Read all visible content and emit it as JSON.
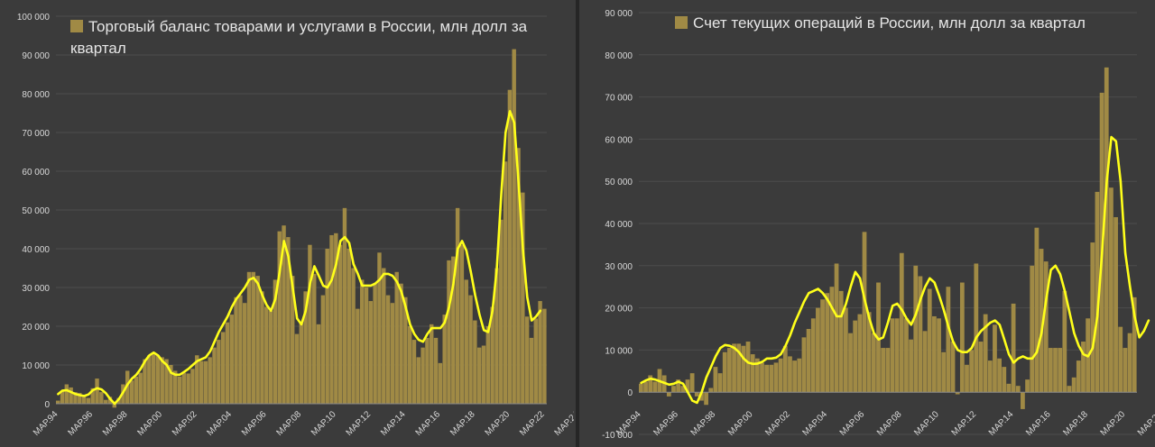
{
  "chart_data": [
    {
      "type": "bar",
      "legend": "Торговый баланс товарами и услугами в России, млн долл за квартал",
      "bar_color": "#a08a45",
      "line_color": "#ffff1a",
      "ylim": [
        0,
        100000
      ],
      "yticks": [
        "0",
        "10 000",
        "20 000",
        "30 000",
        "40 000",
        "50 000",
        "60 000",
        "70 000",
        "80 000",
        "90 000",
        "100 000"
      ],
      "xticks": [
        "МАР.94",
        "МАР.96",
        "МАР.98",
        "МАР.00",
        "МАР.02",
        "МАР.04",
        "МАР.06",
        "МАР.08",
        "МАР.10",
        "МАР.12",
        "МАР.14",
        "МАР.16",
        "МАР.18",
        "МАР.20",
        "МАР.22",
        "МАР.24"
      ],
      "series": [
        {
          "name": "Торговый баланс",
          "kind": "bar",
          "values": [
            800,
            3200,
            5000,
            4200,
            3000,
            2800,
            2000,
            1500,
            4000,
            6500,
            3000,
            1000,
            1800,
            -1000,
            1500,
            5000,
            8500,
            6000,
            7000,
            8000,
            11500,
            12500,
            13000,
            12500,
            12000,
            11500,
            10000,
            8500,
            7000,
            8000,
            7800,
            9000,
            12500,
            11000,
            11000,
            12000,
            14500,
            16500,
            18500,
            21000,
            23000,
            27500,
            28000,
            26000,
            34000,
            34000,
            33000,
            29000,
            25000,
            24000,
            32000,
            44500,
            46000,
            43000,
            33000,
            18000,
            21000,
            29000,
            41000,
            33500,
            20500,
            28000,
            40000,
            43500,
            44000,
            41000,
            50500,
            40000,
            35000,
            24500,
            32000,
            30000,
            26500,
            31000,
            39000,
            35000,
            28000,
            26000,
            34000,
            31000,
            27500,
            20000,
            16500,
            12000,
            14500,
            17000,
            20500,
            17000,
            10500,
            23000,
            37000,
            38000,
            50500,
            41000,
            32000,
            28000,
            21500,
            14500,
            15000,
            20000,
            25000,
            35000,
            47500,
            62500,
            81000,
            91500,
            66000,
            54500,
            22500,
            17000,
            22000,
            26500,
            24500
          ]
        },
        {
          "name": "Скользящее среднее",
          "kind": "line",
          "values": [
            2500,
            3400,
            3500,
            3000,
            2500,
            2200,
            2000,
            2400,
            3500,
            4000,
            3700,
            2700,
            1200,
            0,
            1200,
            3000,
            5000,
            6500,
            7500,
            9000,
            11000,
            12500,
            13200,
            12500,
            11000,
            10000,
            8000,
            7500,
            7500,
            8200,
            9000,
            10000,
            11000,
            11500,
            12000,
            13500,
            16000,
            18500,
            20500,
            22500,
            25000,
            27000,
            28500,
            30000,
            32000,
            32500,
            31000,
            28000,
            25500,
            24000,
            27000,
            34000,
            42000,
            38000,
            30000,
            22000,
            20500,
            24000,
            31000,
            35500,
            33000,
            30500,
            30000,
            32000,
            36000,
            42000,
            43000,
            41500,
            36000,
            33500,
            30500,
            30500,
            30500,
            31000,
            32000,
            33500,
            33500,
            33000,
            31500,
            29000,
            25000,
            20500,
            18000,
            16500,
            16000,
            18000,
            19500,
            19500,
            19500,
            21000,
            25000,
            31000,
            40000,
            42000,
            39500,
            34000,
            28000,
            23000,
            19000,
            18500,
            24000,
            35000,
            54000,
            70000,
            75500,
            72500,
            57000,
            40000,
            27500,
            21500,
            22500,
            24000
          ]
        }
      ]
    },
    {
      "type": "bar",
      "legend": "Счет текущих операций в России, млн долл за квартал",
      "bar_color": "#a08a45",
      "line_color": "#ffff1a",
      "ylim": [
        -10000,
        90000
      ],
      "yticks": [
        "-10 000",
        "0",
        "10 000",
        "20 000",
        "30 000",
        "40 000",
        "50 000",
        "60 000",
        "70 000",
        "80 000",
        "90 000"
      ],
      "xticks": [
        "МАР.94",
        "МАР.96",
        "МАР.98",
        "МАР.00",
        "МАР.02",
        "МАР.04",
        "МАР.06",
        "МАР.08",
        "МАР.10",
        "МАР.12",
        "МАР.14",
        "МАР.16",
        "МАР.18",
        "МАР.20",
        "МАР.22",
        "МАР.24"
      ],
      "series": [
        {
          "name": "Счет текущих операций",
          "kind": "bar",
          "values": [
            2000,
            2500,
            4000,
            2500,
            5500,
            4000,
            -1000,
            1500,
            3000,
            1500,
            3000,
            4500,
            -1000,
            -2000,
            -3000,
            1000,
            6000,
            4500,
            9500,
            10500,
            11500,
            11500,
            11000,
            12000,
            9000,
            8000,
            7000,
            6500,
            6500,
            7000,
            8000,
            11000,
            8500,
            7500,
            8000,
            13000,
            15000,
            17500,
            20000,
            22000,
            23500,
            25000,
            30500,
            24000,
            20000,
            14000,
            17000,
            18500,
            38000,
            19000,
            14000,
            26000,
            10500,
            10500,
            17500,
            17500,
            33000,
            17500,
            12500,
            30000,
            27500,
            14500,
            24500,
            18000,
            17500,
            9500,
            25000,
            12000,
            -500,
            26000,
            6500,
            10000,
            30500,
            12000,
            18500,
            7500,
            16000,
            8000,
            6000,
            2000,
            21000,
            1500,
            -4000,
            3000,
            30000,
            39000,
            34000,
            31000,
            10500,
            10500,
            10500,
            24000,
            1500,
            3500,
            7500,
            12000,
            17500,
            35500,
            47500,
            71000,
            77000,
            48500,
            41500,
            15500,
            10500,
            14000,
            22500
          ]
        },
        {
          "name": "Скользящее среднее",
          "kind": "line",
          "values": [
            2200,
            2800,
            3200,
            3000,
            2600,
            2200,
            1800,
            2000,
            2500,
            2000,
            0,
            -2000,
            -2500,
            0,
            3500,
            6000,
            8500,
            10500,
            11200,
            11000,
            10500,
            9500,
            8000,
            7000,
            6700,
            6800,
            7200,
            8000,
            8000,
            8200,
            9000,
            11000,
            13500,
            16500,
            19000,
            21500,
            23500,
            24000,
            24500,
            23500,
            22000,
            20000,
            18000,
            18000,
            21000,
            25000,
            28500,
            27000,
            22000,
            17500,
            14000,
            12500,
            13000,
            16500,
            20500,
            21000,
            19500,
            17500,
            16000,
            18500,
            22000,
            25000,
            27000,
            26000,
            23000,
            19500,
            15500,
            12000,
            10000,
            9500,
            9500,
            10500,
            13000,
            14500,
            15500,
            16500,
            17000,
            16000,
            12500,
            9000,
            7000,
            8000,
            8500,
            8000,
            8000,
            9500,
            14000,
            22000,
            29000,
            30000,
            28000,
            24000,
            19000,
            14000,
            11000,
            9000,
            8500,
            10500,
            18000,
            33000,
            50000,
            60500,
            59500,
            50000,
            33000,
            25000,
            18000,
            13000,
            14500,
            17000
          ]
        }
      ]
    }
  ]
}
